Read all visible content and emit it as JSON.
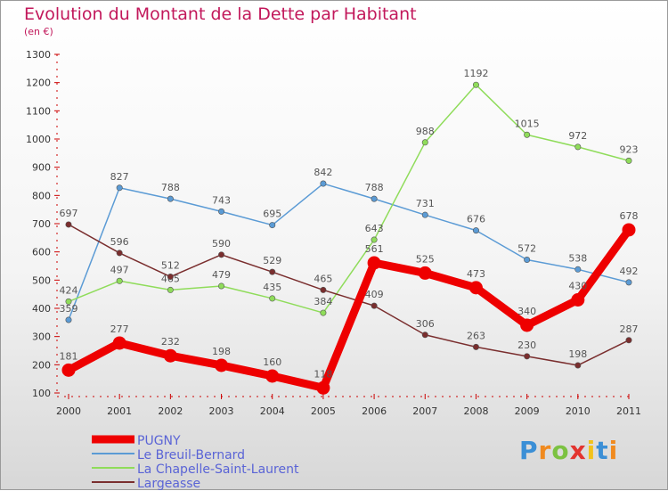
{
  "header": {
    "title": "Evolution du Montant de la Dette par Habitant",
    "subtitle": "(en €)"
  },
  "logo": {
    "text": "Proxiti",
    "colors": [
      "#3b8fd6",
      "#f08a1f",
      "#7cc242",
      "#e3342f",
      "#f2c21b",
      "#3b8fd6",
      "#f08a1f"
    ]
  },
  "chart_data": {
    "type": "line",
    "title": "Evolution du Montant de la Dette par Habitant",
    "subtitle": "(en €)",
    "x": [
      "2000",
      "2001",
      "2002",
      "2003",
      "2004",
      "2005",
      "2006",
      "2007",
      "2008",
      "2009",
      "2010",
      "2011"
    ],
    "ylim": [
      100,
      1300
    ],
    "yticks": [
      100,
      200,
      300,
      400,
      500,
      600,
      700,
      800,
      900,
      1000,
      1100,
      1200,
      1300
    ],
    "grid": false,
    "legend_position": "bottom-left",
    "series": [
      {
        "name": "PUGNY",
        "color": "#ee0000",
        "values": [
          181,
          277,
          232,
          198,
          160,
          118,
          561,
          525,
          473,
          340,
          430,
          678
        ],
        "labels": [
          "181",
          "277",
          "232",
          "198",
          "160",
          "118",
          "561",
          "525",
          "473",
          "340",
          "430",
          "678"
        ]
      },
      {
        "name": "Le Breuil-Bernard",
        "color": "#5b9bd5",
        "values": [
          359,
          827,
          788,
          743,
          695,
          842,
          788,
          731,
          676,
          572,
          538,
          492
        ],
        "labels": [
          "359",
          "827",
          "788",
          "743",
          "695",
          "842",
          "788",
          "731",
          "676",
          "572",
          "538",
          "492"
        ]
      },
      {
        "name": "La Chapelle-Saint-Laurent",
        "color": "#8fdc5a",
        "values": [
          424,
          497,
          465,
          479,
          435,
          384,
          643,
          988,
          1192,
          1015,
          972,
          923
        ],
        "labels": [
          "424",
          "497",
          "465",
          "479",
          "435",
          "384",
          "643",
          "988",
          "1192",
          "1015",
          "972",
          "923"
        ]
      },
      {
        "name": "Largeasse",
        "color": "#7a2e2e",
        "values": [
          697,
          596,
          512,
          590,
          529,
          465,
          409,
          306,
          263,
          230,
          198,
          287
        ],
        "labels": [
          "697",
          "596",
          "512",
          "590",
          "529",
          "465",
          "409",
          "306",
          "263",
          "230",
          "198",
          "287"
        ]
      }
    ]
  }
}
